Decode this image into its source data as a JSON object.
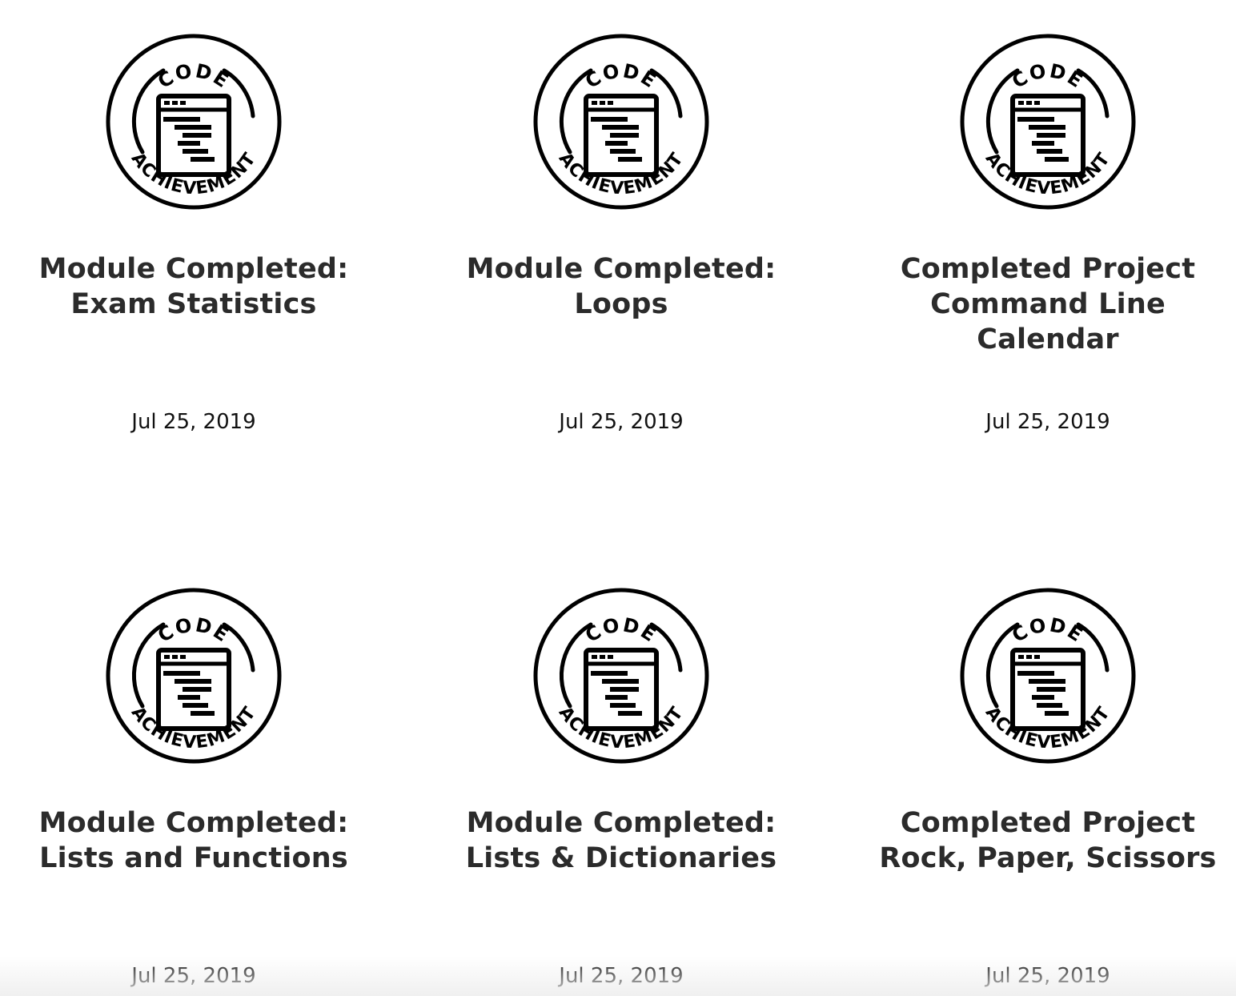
{
  "achievements": [
    {
      "badge_top": "CODE",
      "badge_bottom": "ACHIEVEMENT",
      "icon": "code-achievement-badge-icon",
      "title": "Module Completed:\nExam Statistics",
      "date": "Jul 25, 2019"
    },
    {
      "badge_top": "CODE",
      "badge_bottom": "ACHIEVEMENT",
      "icon": "code-achievement-badge-icon",
      "title": "Module Completed:\nLoops",
      "date": "Jul 25, 2019"
    },
    {
      "badge_top": "CODE",
      "badge_bottom": "ACHIEVEMENT",
      "icon": "code-achievement-badge-icon",
      "title": "Completed Project\nCommand Line\nCalendar",
      "date": "Jul 25, 2019"
    },
    {
      "badge_top": "CODE",
      "badge_bottom": "ACHIEVEMENT",
      "icon": "code-achievement-badge-icon",
      "title": "Module Completed:\nLists and Functions",
      "date": "Jul 25, 2019"
    },
    {
      "badge_top": "CODE",
      "badge_bottom": "ACHIEVEMENT",
      "icon": "code-achievement-badge-icon",
      "title": "Module Completed:\nLists & Dictionaries",
      "date": "Jul 25, 2019"
    },
    {
      "badge_top": "CODE",
      "badge_bottom": "ACHIEVEMENT",
      "icon": "code-achievement-badge-icon",
      "title": "Completed Project\nRock, Paper, Scissors",
      "date": "Jul 25, 2019"
    }
  ]
}
